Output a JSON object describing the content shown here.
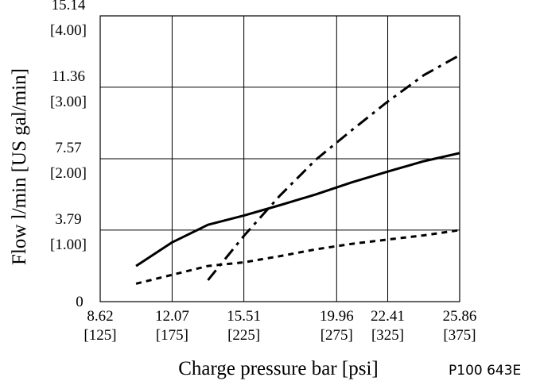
{
  "chart_data": {
    "type": "line",
    "xlabel": "Charge pressure bar [psi]",
    "ylabel": "Flow  l/min [US gal/min]",
    "reference_code": "P100 643E",
    "x_ticks": [
      {
        "value": 8.62,
        "line1": "8.62",
        "line2": "[125]"
      },
      {
        "value": 12.07,
        "line1": "12.07",
        "line2": "[175]"
      },
      {
        "value": 15.51,
        "line1": "15.51",
        "line2": "[225]"
      },
      {
        "value": 19.96,
        "line1": "19.96",
        "line2": "[275]"
      },
      {
        "value": 22.41,
        "line1": "22.41",
        "line2": "[325]"
      },
      {
        "value": 25.86,
        "line1": "25.86",
        "line2": "[375]"
      }
    ],
    "y_ticks": [
      {
        "value": 0,
        "line1": "0",
        "line2": ""
      },
      {
        "value": 3.79,
        "line1": "3.79",
        "line2": "[1.00]"
      },
      {
        "value": 7.57,
        "line1": "7.57",
        "line2": "[2.00]"
      },
      {
        "value": 11.36,
        "line1": "11.36",
        "line2": "[3.00]"
      },
      {
        "value": 15.14,
        "line1": "15.14",
        "line2": "[4.00]"
      }
    ],
    "grid": true,
    "series": [
      {
        "style": "solid",
        "x": [
          10.34,
          12.07,
          13.79,
          15.51,
          17.24,
          18.96,
          20.69,
          22.41,
          24.14,
          25.86
        ],
        "y": [
          1.89,
          3.14,
          4.07,
          4.56,
          5.11,
          5.68,
          6.32,
          6.89,
          7.44,
          7.87
        ]
      },
      {
        "style": "short-dash",
        "x": [
          10.34,
          12.07,
          13.79,
          15.51,
          17.24,
          18.96,
          20.69,
          22.41,
          24.14,
          25.86
        ],
        "y": [
          0.95,
          1.42,
          1.89,
          2.08,
          2.41,
          2.77,
          3.06,
          3.29,
          3.51,
          3.79
        ]
      },
      {
        "style": "long-dash",
        "x": [
          13.79,
          15.51,
          17.24,
          18.96,
          20.69,
          22.41,
          24.14,
          25.86
        ],
        "y": [
          1.14,
          3.48,
          5.62,
          7.52,
          9.09,
          10.6,
          12.0,
          13.06
        ]
      }
    ]
  }
}
